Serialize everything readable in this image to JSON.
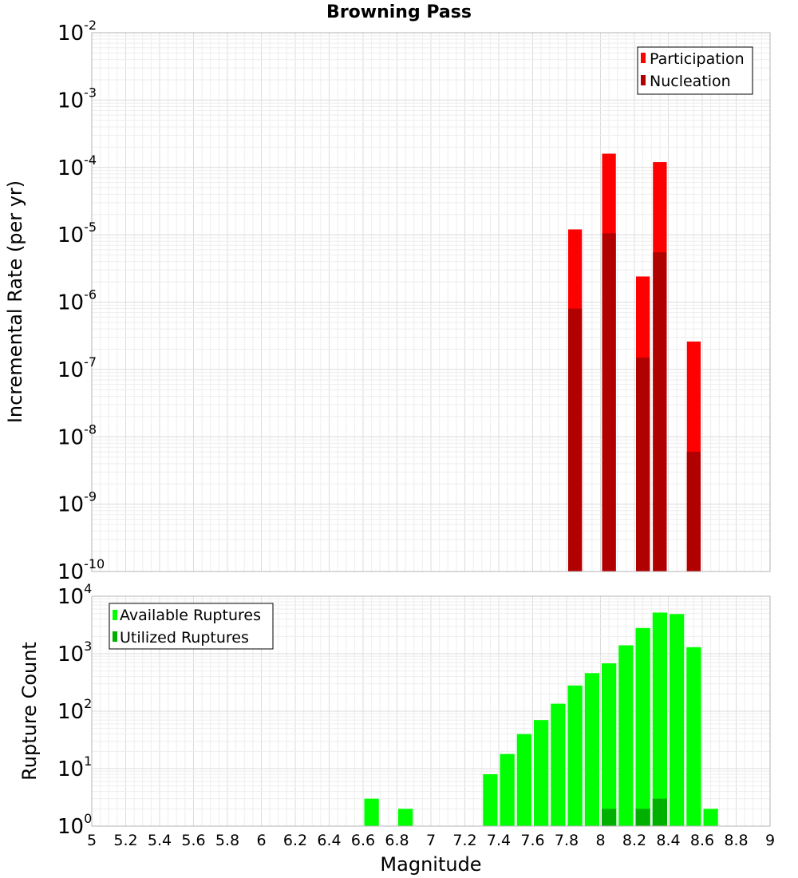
{
  "chart_data": [
    {
      "type": "bar",
      "title": "Browning Pass",
      "xlabel": "",
      "ylabel": "Incremental Rate (per yr)",
      "yscale": "log",
      "ylim_exponents": [
        -10,
        -2
      ],
      "y_tick_labels": [
        {
          "base": "10",
          "exp": "-2"
        },
        {
          "base": "10",
          "exp": "-3"
        },
        {
          "base": "10",
          "exp": "-4"
        },
        {
          "base": "10",
          "exp": "-5"
        },
        {
          "base": "10",
          "exp": "-6"
        },
        {
          "base": "10",
          "exp": "-7"
        },
        {
          "base": "10",
          "exp": "-8"
        },
        {
          "base": "10",
          "exp": "-9"
        },
        {
          "base": "10",
          "exp": "-10"
        }
      ],
      "xlim": [
        5,
        9
      ],
      "bin_width": 0.1,
      "legend": [
        "Participation",
        "Nucleation"
      ],
      "legend_position": "top-right",
      "series": [
        {
          "name": "Participation",
          "color": "#ff0000",
          "x": [
            7.85,
            8.05,
            8.25,
            8.35,
            8.55
          ],
          "values": [
            1.2e-05,
            0.00016,
            2.4e-06,
            0.00012,
            2.6e-07
          ]
        },
        {
          "name": "Nucleation",
          "color": "#b00000",
          "x": [
            7.85,
            8.05,
            8.25,
            8.35,
            8.55
          ],
          "values": [
            8e-07,
            1.05e-05,
            1.5e-07,
            5.5e-06,
            6e-09
          ]
        }
      ]
    },
    {
      "type": "bar",
      "title": "",
      "xlabel": "Magnitude",
      "ylabel": "Rupture Count",
      "yscale": "log",
      "ylim_exponents": [
        0,
        4
      ],
      "y_tick_labels": [
        {
          "base": "10",
          "exp": "4"
        },
        {
          "base": "10",
          "exp": "3"
        },
        {
          "base": "10",
          "exp": "2"
        },
        {
          "base": "10",
          "exp": "1"
        },
        {
          "base": "10",
          "exp": "0"
        }
      ],
      "xlim": [
        5,
        9
      ],
      "x_tick_labels": [
        "5",
        "5.2",
        "5.4",
        "5.6",
        "5.8",
        "6",
        "6.2",
        "6.4",
        "6.6",
        "6.8",
        "7",
        "7.2",
        "7.4",
        "7.6",
        "7.8",
        "8",
        "8.2",
        "8.4",
        "8.6",
        "8.8",
        "9"
      ],
      "bin_width": 0.1,
      "legend": [
        "Available Ruptures",
        "Utilized Ruptures"
      ],
      "legend_position": "top-left",
      "series": [
        {
          "name": "Available Ruptures",
          "color": "#00ff00",
          "x": [
            6.65,
            6.85,
            6.95,
            7.25,
            7.35,
            7.45,
            7.55,
            7.65,
            7.75,
            7.85,
            7.95,
            8.05,
            8.15,
            8.25,
            8.35,
            8.45,
            8.55,
            8.65
          ],
          "values": [
            3,
            2,
            1,
            1,
            8,
            18,
            40,
            70,
            135,
            280,
            460,
            680,
            1400,
            2800,
            5200,
            4900,
            1300,
            2
          ]
        },
        {
          "name": "Utilized Ruptures",
          "color": "#00b000",
          "x": [
            7.85,
            8.05,
            8.25,
            8.35,
            8.55
          ],
          "values": [
            1,
            2,
            2,
            3,
            1
          ]
        }
      ]
    }
  ]
}
